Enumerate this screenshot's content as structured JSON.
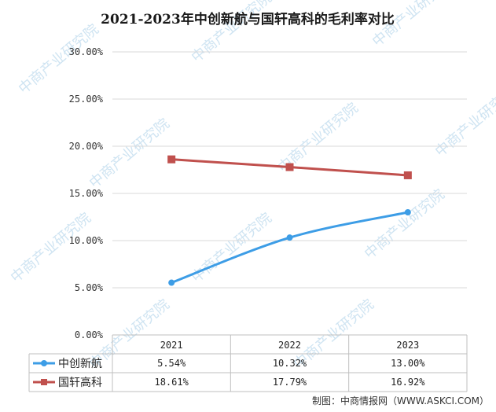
{
  "chart_data": {
    "type": "line",
    "title": "2021-2023年中创新航与国轩高科的毛利率对比",
    "categories": [
      "2021",
      "2022",
      "2023"
    ],
    "y_ticks": [
      "30.00%",
      "25.00%",
      "20.00%",
      "15.00%",
      "10.00%",
      "5.00%",
      "0.00%"
    ],
    "ylim": [
      0,
      30
    ],
    "grid": true,
    "legend": "bottom-data-table",
    "series": [
      {
        "name": "中创新航",
        "values": [
          5.54,
          10.32,
          13.0
        ],
        "labels": [
          "5.54%",
          "10.32%",
          "13.00%"
        ],
        "color": "#3d9de6",
        "marker": "circle"
      },
      {
        "name": "国轩高科",
        "values": [
          18.61,
          17.79,
          16.92
        ],
        "labels": [
          "18.61%",
          "17.79%",
          "16.92%"
        ],
        "color": "#c0504d",
        "marker": "square"
      }
    ]
  },
  "source": "制图：中商情报网（WWW.ASKCI.COM）",
  "watermark": "中商产业研究院"
}
